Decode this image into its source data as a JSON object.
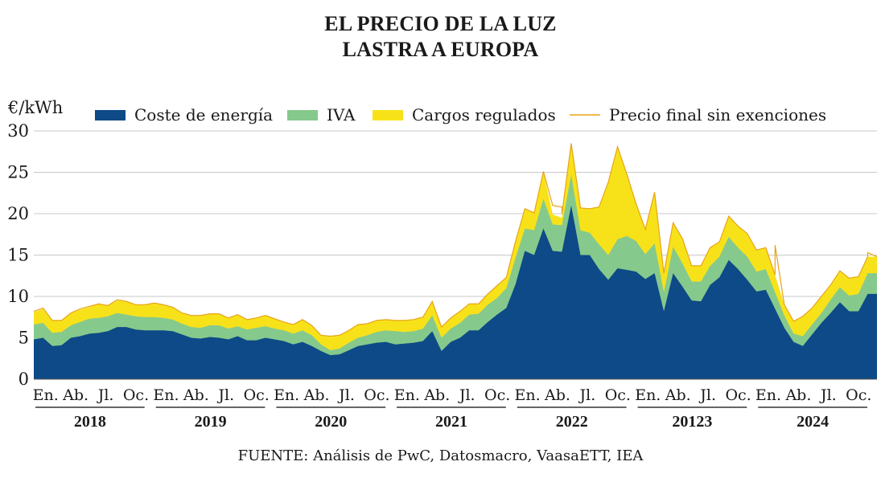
{
  "chart_data": {
    "type": "area",
    "title_line1": "EL PRECIO DE LA LUZ",
    "title_line2": "LASTRA A EUROPA",
    "unit_label": "€/kWh",
    "ylim": [
      0,
      30
    ],
    "y_ticks": [
      "0",
      "5",
      "10",
      "15",
      "20",
      "25",
      "30"
    ],
    "legend": {
      "coste": "Coste de energía",
      "iva": "IVA",
      "cargos": "Cargos regulados",
      "final": "Precio final sin exenciones"
    },
    "month_labels": [
      "En.",
      "Ab.",
      "Jl.",
      "Oc."
    ],
    "years": [
      "2018",
      "2019",
      "2020",
      "2021",
      "2022",
      "20123",
      "2024"
    ],
    "source": "FUENTE: Análisis de PwC, Datosmacro, VaasaETT, IEA",
    "colors": {
      "coste": "#0d4a87",
      "iva": "#86c98c",
      "cargos": "#f7e21a",
      "final": "#e8a317",
      "axis": "#555555"
    },
    "series": [
      {
        "name": "Coste de energía",
        "values": [
          4.8,
          5.0,
          4.0,
          4.1,
          5.0,
          5.2,
          5.5,
          5.6,
          5.8,
          6.3,
          6.3,
          6.0,
          5.9,
          5.9,
          5.9,
          5.8,
          5.4,
          5.0,
          4.9,
          5.1,
          5.0,
          4.8,
          5.2,
          4.7,
          4.7,
          5.0,
          4.8,
          4.6,
          4.2,
          4.5,
          4.0,
          3.4,
          2.9,
          3.0,
          3.5,
          4.0,
          4.2,
          4.4,
          4.5,
          4.2,
          4.3,
          4.4,
          4.6,
          5.8,
          3.4,
          4.5,
          5.0,
          5.9,
          5.9,
          6.9,
          7.8,
          8.6,
          11.5,
          15.5,
          15.0,
          18.2,
          15.5,
          15.4,
          21.0,
          15.0,
          15.0,
          13.3,
          12.0,
          13.4,
          13.2,
          13.0,
          12.1,
          12.8,
          8.2,
          12.8,
          11.2,
          9.5,
          9.4,
          11.4,
          12.3,
          14.4,
          13.3,
          12.0,
          10.6,
          10.8,
          8.5,
          6.2,
          4.5,
          4.0,
          5.4,
          6.8,
          8.0,
          9.3,
          8.2,
          8.2,
          10.3,
          10.3
        ]
      },
      {
        "name": "IVA",
        "values": [
          1.8,
          1.8,
          1.6,
          1.6,
          1.5,
          1.7,
          1.8,
          1.8,
          1.8,
          1.7,
          1.5,
          1.6,
          1.6,
          1.6,
          1.5,
          1.4,
          1.3,
          1.3,
          1.3,
          1.4,
          1.5,
          1.3,
          1.2,
          1.3,
          1.5,
          1.4,
          1.3,
          1.3,
          1.3,
          1.4,
          1.3,
          0.8,
          0.6,
          0.7,
          0.9,
          1.0,
          1.1,
          1.3,
          1.4,
          1.6,
          1.4,
          1.4,
          1.5,
          1.9,
          1.6,
          1.6,
          1.8,
          1.9,
          2.0,
          2.1,
          2.0,
          2.4,
          3.2,
          2.7,
          3.0,
          3.6,
          3.2,
          3.2,
          3.7,
          3.0,
          2.7,
          3.0,
          3.0,
          3.5,
          4.1,
          3.7,
          3.0,
          3.6,
          2.3,
          3.2,
          2.8,
          2.3,
          2.4,
          2.3,
          2.5,
          2.8,
          2.6,
          2.8,
          2.4,
          2.5,
          2.0,
          1.5,
          1.0,
          1.2,
          1.2,
          1.2,
          1.6,
          1.8,
          1.9,
          2.1,
          2.5,
          2.5
        ]
      },
      {
        "name": "Cargos regulados",
        "values": [
          1.5,
          1.7,
          1.5,
          1.4,
          1.5,
          1.5,
          1.4,
          1.7,
          1.3,
          1.5,
          1.6,
          1.4,
          1.5,
          1.7,
          1.6,
          1.5,
          1.3,
          1.4,
          1.5,
          1.4,
          1.4,
          1.3,
          1.4,
          1.2,
          1.2,
          1.3,
          1.2,
          1.0,
          1.1,
          1.3,
          1.2,
          1.1,
          1.7,
          1.6,
          1.5,
          1.6,
          1.4,
          1.4,
          1.3,
          1.3,
          1.4,
          1.4,
          1.4,
          1.7,
          1.3,
          1.3,
          1.4,
          1.3,
          1.2,
          1.3,
          1.5,
          1.3,
          2.0,
          2.4,
          2.1,
          3.3,
          1.2,
          0.9,
          3.8,
          2.7,
          2.9,
          4.5,
          8.8,
          11.2,
          7.5,
          4.5,
          3.0,
          6.2,
          2.3,
          2.9,
          3.0,
          1.9,
          1.9,
          2.2,
          1.8,
          2.5,
          2.6,
          2.8,
          2.6,
          2.6,
          2.1,
          1.3,
          1.5,
          2.4,
          2.0,
          2.0,
          1.8,
          2.0,
          2.1,
          2.1,
          2.0,
          2.0
        ]
      },
      {
        "name": "Precio final sin exenciones",
        "values": [
          8.2,
          8.6,
          7.1,
          7.1,
          8.0,
          8.5,
          8.8,
          9.1,
          8.9,
          9.6,
          9.4,
          9.0,
          9.0,
          9.2,
          9.0,
          8.7,
          8.0,
          7.7,
          7.7,
          7.9,
          7.9,
          7.4,
          7.8,
          7.2,
          7.4,
          7.7,
          7.3,
          6.9,
          6.6,
          7.2,
          6.5,
          5.3,
          5.2,
          5.3,
          5.9,
          6.6,
          6.7,
          7.1,
          7.2,
          7.1,
          7.1,
          7.2,
          7.5,
          9.4,
          6.3,
          7.4,
          8.2,
          9.1,
          9.1,
          10.3,
          11.3,
          12.3,
          16.7,
          20.6,
          20.1,
          25.1,
          21.0,
          20.8,
          28.5,
          20.7,
          20.6,
          20.8,
          23.8,
          28.1,
          24.8,
          21.2,
          18.1,
          22.6,
          12.8,
          18.9,
          17.0,
          13.7,
          13.7,
          15.9,
          16.6,
          19.7,
          18.5,
          17.6,
          15.6,
          15.9,
          12.6,
          9.0,
          7.0,
          7.6,
          8.6,
          10.0,
          11.4,
          13.1,
          12.2,
          12.4,
          14.8,
          14.8
        ],
        "extra_points": [
          {
            "x": 57,
            "y": 20.0
          },
          {
            "x": 80,
            "y": 16.2
          },
          {
            "x": 90,
            "y": 15.3
          }
        ]
      }
    ]
  }
}
